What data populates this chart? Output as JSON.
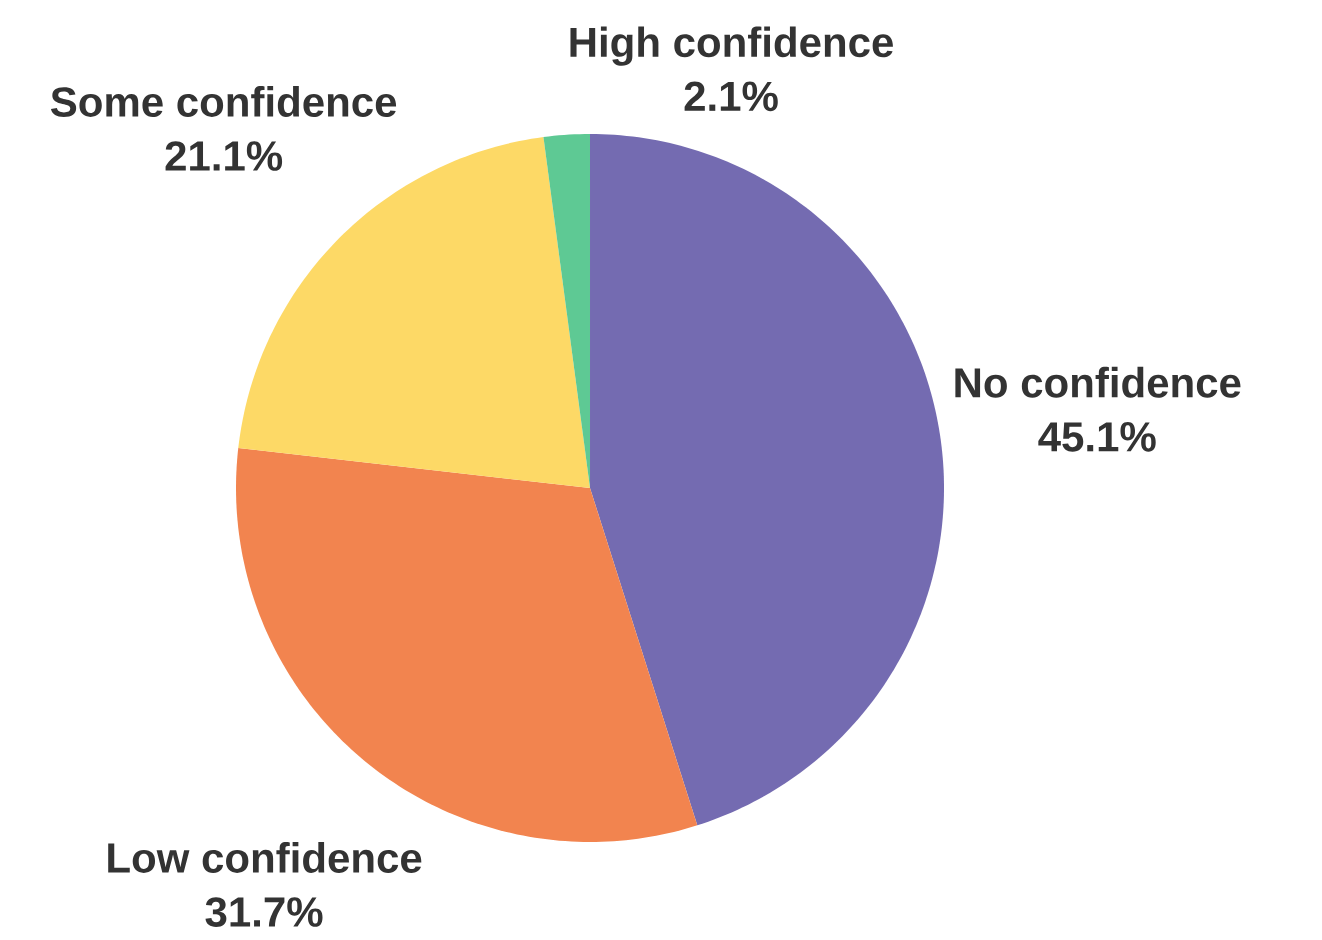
{
  "chart_data": {
    "type": "pie",
    "categories": [
      "No confidence",
      "Low confidence",
      "Some confidence",
      "High confidence"
    ],
    "values": [
      45.1,
      31.7,
      21.1,
      2.1
    ],
    "colors": [
      "#746bb1",
      "#f2844f",
      "#fdd966",
      "#5ec994"
    ],
    "value_labels": [
      "45.1%",
      "31.7%",
      "21.1%",
      "2.1%"
    ]
  }
}
